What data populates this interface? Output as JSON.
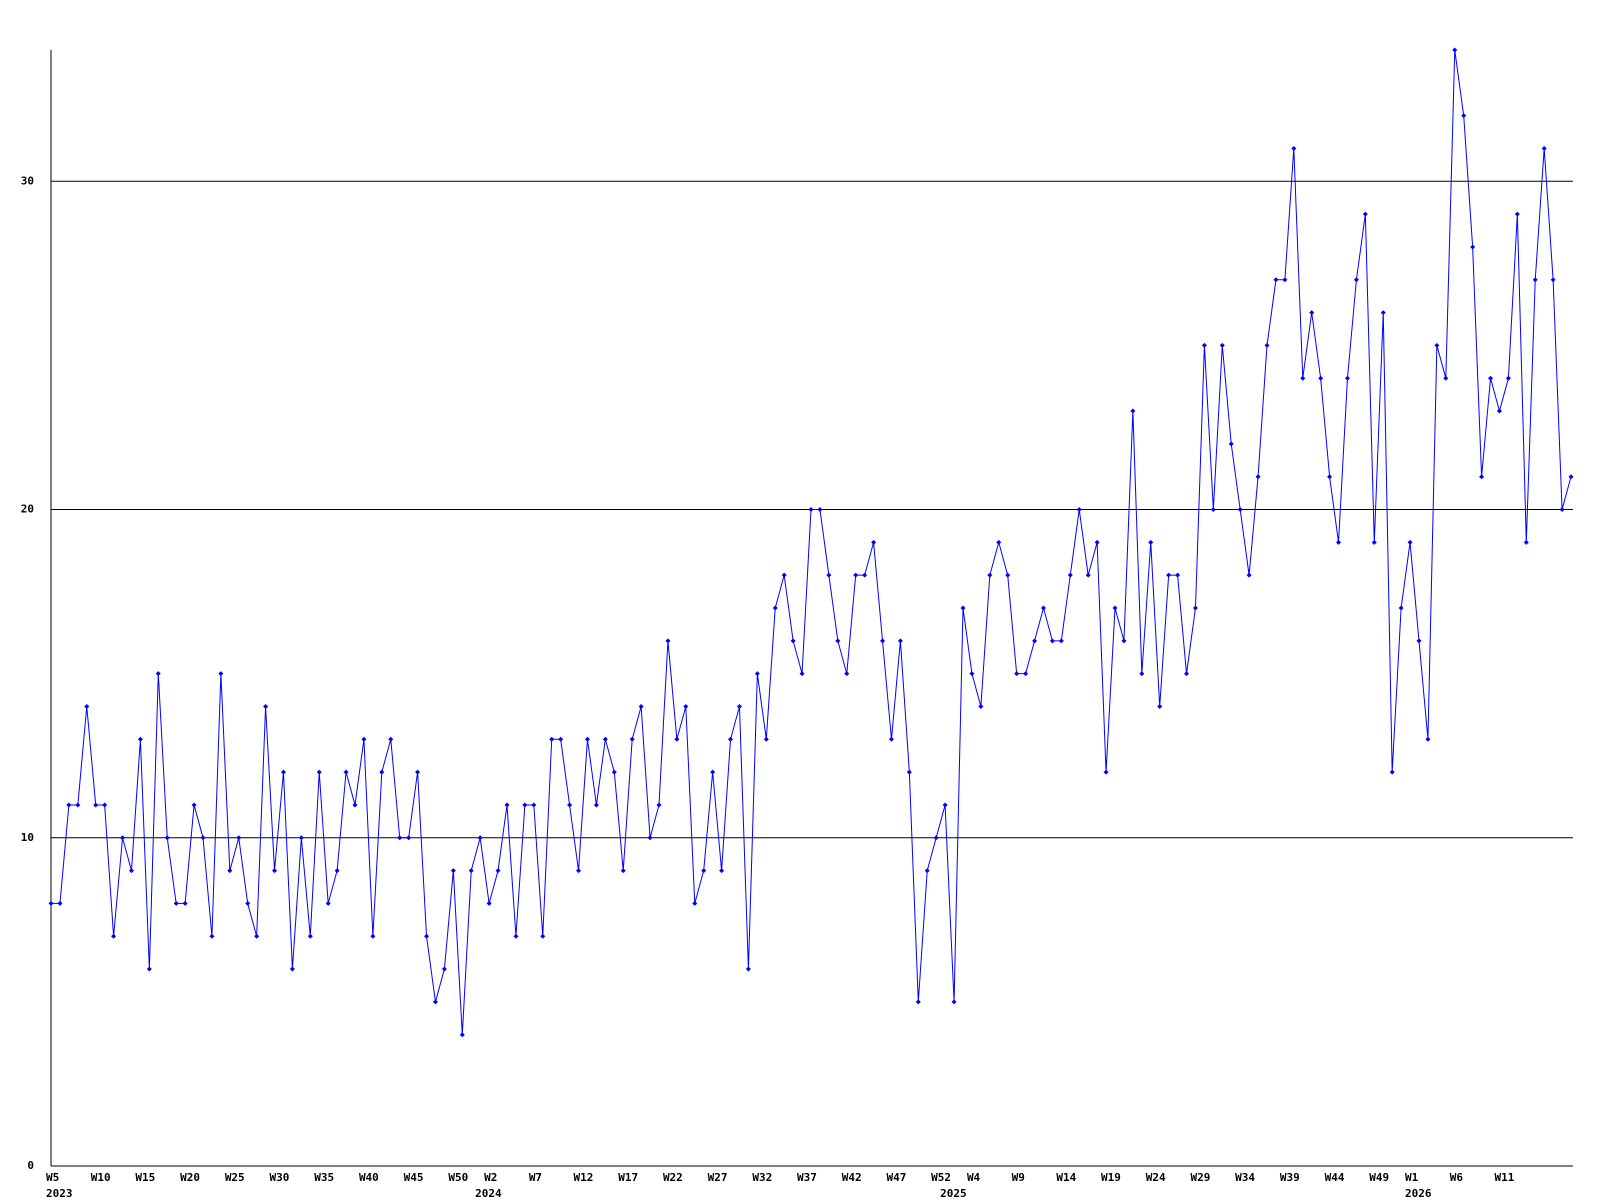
{
  "chart_data": {
    "type": "line",
    "categories": [
      "W5",
      null,
      null,
      null,
      null,
      "W10",
      null,
      null,
      null,
      null,
      "W15",
      null,
      null,
      null,
      null,
      "W20",
      null,
      null,
      null,
      null,
      "W25",
      null,
      null,
      null,
      null,
      "W30",
      null,
      null,
      null,
      null,
      "W35",
      null,
      null,
      null,
      null,
      "W40",
      null,
      null,
      null,
      null,
      "W45",
      null,
      null,
      null,
      null,
      "W50",
      null,
      null,
      null,
      "W2",
      null,
      null,
      null,
      null,
      "W7",
      null,
      null,
      null,
      null,
      "W12",
      null,
      null,
      null,
      null,
      "W17",
      null,
      null,
      null,
      null,
      "W22",
      null,
      null,
      null,
      null,
      "W27",
      null,
      null,
      null,
      null,
      "W32",
      null,
      null,
      null,
      null,
      "W37",
      null,
      null,
      null,
      null,
      "W42",
      null,
      null,
      null,
      null,
      "W47",
      null,
      null,
      null,
      null,
      "W52",
      null,
      null,
      null,
      "W4",
      null,
      null,
      null,
      null,
      "W9",
      null,
      null,
      null,
      null,
      "W14",
      null,
      null,
      null,
      null,
      "W19",
      null,
      null,
      null,
      null,
      "W24",
      null,
      null,
      null,
      null,
      "W29",
      null,
      null,
      null,
      null,
      "W34",
      null,
      null,
      null,
      null,
      "W39",
      null,
      null,
      null,
      null,
      "W44",
      null,
      null,
      null,
      null,
      "W49",
      null,
      null,
      null,
      "W1",
      null,
      null,
      null,
      null,
      "W6",
      null,
      null,
      null,
      null,
      "W11",
      null,
      null,
      null,
      null,
      null,
      null,
      null,
      null
    ],
    "years": [
      "2023",
      null,
      null,
      null,
      null,
      null,
      null,
      null,
      null,
      null,
      null,
      null,
      null,
      null,
      null,
      null,
      null,
      null,
      null,
      null,
      null,
      null,
      null,
      null,
      null,
      null,
      null,
      null,
      null,
      null,
      null,
      null,
      null,
      null,
      null,
      null,
      null,
      null,
      null,
      null,
      null,
      null,
      null,
      null,
      null,
      null,
      null,
      null,
      "2024",
      null,
      null,
      null,
      null,
      null,
      null,
      null,
      null,
      null,
      null,
      null,
      null,
      null,
      null,
      null,
      null,
      null,
      null,
      null,
      null,
      null,
      null,
      null,
      null,
      null,
      null,
      null,
      null,
      null,
      null,
      null,
      null,
      null,
      null,
      null,
      null,
      null,
      null,
      null,
      null,
      null,
      null,
      null,
      null,
      null,
      null,
      null,
      null,
      null,
      null,
      null,
      "2025",
      null,
      null,
      null,
      null,
      null,
      null,
      null,
      null,
      null,
      null,
      null,
      null,
      null,
      null,
      null,
      null,
      null,
      null,
      null,
      null,
      null,
      null,
      null,
      null,
      null,
      null,
      null,
      null,
      null,
      null,
      null,
      null,
      null,
      null,
      null,
      null,
      null,
      null,
      null,
      null,
      null,
      null,
      null,
      null,
      null,
      null,
      null,
      null,
      null,
      null,
      null,
      "2026",
      null,
      null,
      null,
      null,
      null,
      null,
      null,
      null,
      null,
      null,
      null,
      null,
      null,
      null,
      null,
      null,
      null,
      null
    ],
    "values": [
      8,
      8,
      11,
      11,
      14,
      11,
      11,
      7,
      10,
      9,
      13,
      6,
      15,
      10,
      8,
      8,
      11,
      10,
      7,
      15,
      9,
      10,
      8,
      7,
      14,
      9,
      12,
      6,
      10,
      7,
      12,
      8,
      9,
      12,
      11,
      13,
      7,
      12,
      13,
      10,
      10,
      12,
      7,
      5,
      6,
      9,
      4,
      9,
      10,
      8,
      9,
      11,
      7,
      11,
      11,
      7,
      13,
      13,
      11,
      9,
      13,
      11,
      13,
      12,
      9,
      13,
      14,
      10,
      11,
      16,
      13,
      14,
      8,
      9,
      12,
      9,
      13,
      14,
      6,
      15,
      13,
      17,
      18,
      16,
      15,
      20,
      20,
      18,
      16,
      15,
      18,
      18,
      19,
      16,
      13,
      16,
      12,
      5,
      9,
      10,
      11,
      5,
      17,
      15,
      14,
      18,
      19,
      18,
      15,
      15,
      16,
      17,
      16,
      16,
      18,
      20,
      18,
      19,
      12,
      17,
      16,
      23,
      15,
      19,
      14,
      18,
      18,
      15,
      17,
      25,
      20,
      25,
      22,
      20,
      18,
      21,
      25,
      27,
      27,
      31,
      24,
      26,
      24,
      21,
      19,
      24,
      27,
      29,
      19,
      26,
      12,
      17,
      19,
      16,
      13,
      25,
      24,
      34,
      32,
      28,
      21,
      24,
      23,
      24,
      29,
      19,
      27,
      31,
      27,
      20,
      21
    ],
    "color": "#0000ff",
    "ylim": [
      0,
      34
    ],
    "yticks": [
      0,
      10,
      20,
      30
    ],
    "grid": true
  }
}
